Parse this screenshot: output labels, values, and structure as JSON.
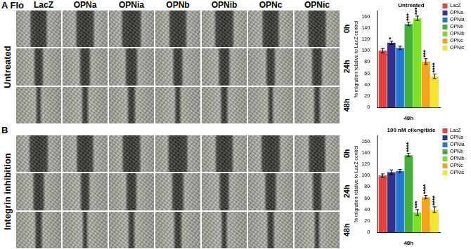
{
  "figure": {
    "columns": [
      "LacZ",
      "OPNa",
      "OPNia",
      "OPNb",
      "OPNib",
      "OPNc",
      "OPNic"
    ],
    "times": [
      "0h",
      "24h",
      "48h"
    ],
    "panels": [
      {
        "label": "A",
        "cell_line": "Flo",
        "row_label": "Untreated"
      },
      {
        "label": "B",
        "row_label": "Integrin inhibition"
      }
    ]
  },
  "chart_data": [
    {
      "type": "bar",
      "title": "Untreated",
      "y_label": "% migration relative to LacZ control",
      "categories": [
        "48h"
      ],
      "ylim": [
        0,
        170
      ],
      "yticks": [
        0,
        20,
        40,
        60,
        80,
        100,
        120,
        140,
        160
      ],
      "grid": false,
      "legend": "right",
      "series": [
        {
          "name": "LacZ",
          "color": "#e8413c",
          "values": [
            100
          ],
          "errors": [
            4
          ]
        },
        {
          "name": "OPNa",
          "color": "#2e3192",
          "values": [
            114
          ],
          "errors": [
            3
          ],
          "significance": [
            "*"
          ]
        },
        {
          "name": "OPNia",
          "color": "#1f78d1",
          "values": [
            105
          ],
          "errors": [
            3
          ]
        },
        {
          "name": "OPNb",
          "color": "#44b03a",
          "values": [
            147
          ],
          "errors": [
            3
          ],
          "significance": [
            "***"
          ]
        },
        {
          "name": "OPNib",
          "color": "#7ddf2a",
          "values": [
            157
          ],
          "errors": [
            4
          ],
          "significance": [
            "***"
          ]
        },
        {
          "name": "OPNc",
          "color": "#f7a21b",
          "values": [
            81
          ],
          "errors": [
            5
          ],
          "significance": [
            "***"
          ]
        },
        {
          "name": "OPNic",
          "color": "#f5e52a",
          "values": [
            55
          ],
          "errors": [
            4
          ],
          "significance": [
            "****"
          ]
        }
      ]
    },
    {
      "type": "bar",
      "title": "100 nM cilengitide",
      "y_label": "% migration relative to LacZ control",
      "categories": [
        "48h"
      ],
      "ylim": [
        0,
        170
      ],
      "yticks": [
        0,
        20,
        40,
        60,
        80,
        100,
        120,
        140,
        160
      ],
      "grid": false,
      "legend": "right",
      "series": [
        {
          "name": "LacZ",
          "color": "#e8413c",
          "values": [
            100
          ],
          "errors": [
            3
          ]
        },
        {
          "name": "OPNa",
          "color": "#2e3192",
          "values": [
            106
          ],
          "errors": [
            4
          ]
        },
        {
          "name": "OPNia",
          "color": "#1f78d1",
          "values": [
            108
          ],
          "errors": [
            3
          ]
        },
        {
          "name": "OPNb",
          "color": "#44b03a",
          "values": [
            136
          ],
          "errors": [
            3
          ],
          "significance": [
            "****"
          ]
        },
        {
          "name": "OPNib",
          "color": "#7ddf2a",
          "values": [
            35
          ],
          "errors": [
            5
          ],
          "significance": [
            "***"
          ]
        },
        {
          "name": "OPNc",
          "color": "#f7a21b",
          "values": [
            62
          ],
          "errors": [
            3
          ],
          "significance": [
            "****"
          ]
        },
        {
          "name": "OPNic",
          "color": "#f5e52a",
          "values": [
            40
          ],
          "errors": [
            5
          ],
          "significance": [
            "****"
          ]
        }
      ]
    }
  ]
}
